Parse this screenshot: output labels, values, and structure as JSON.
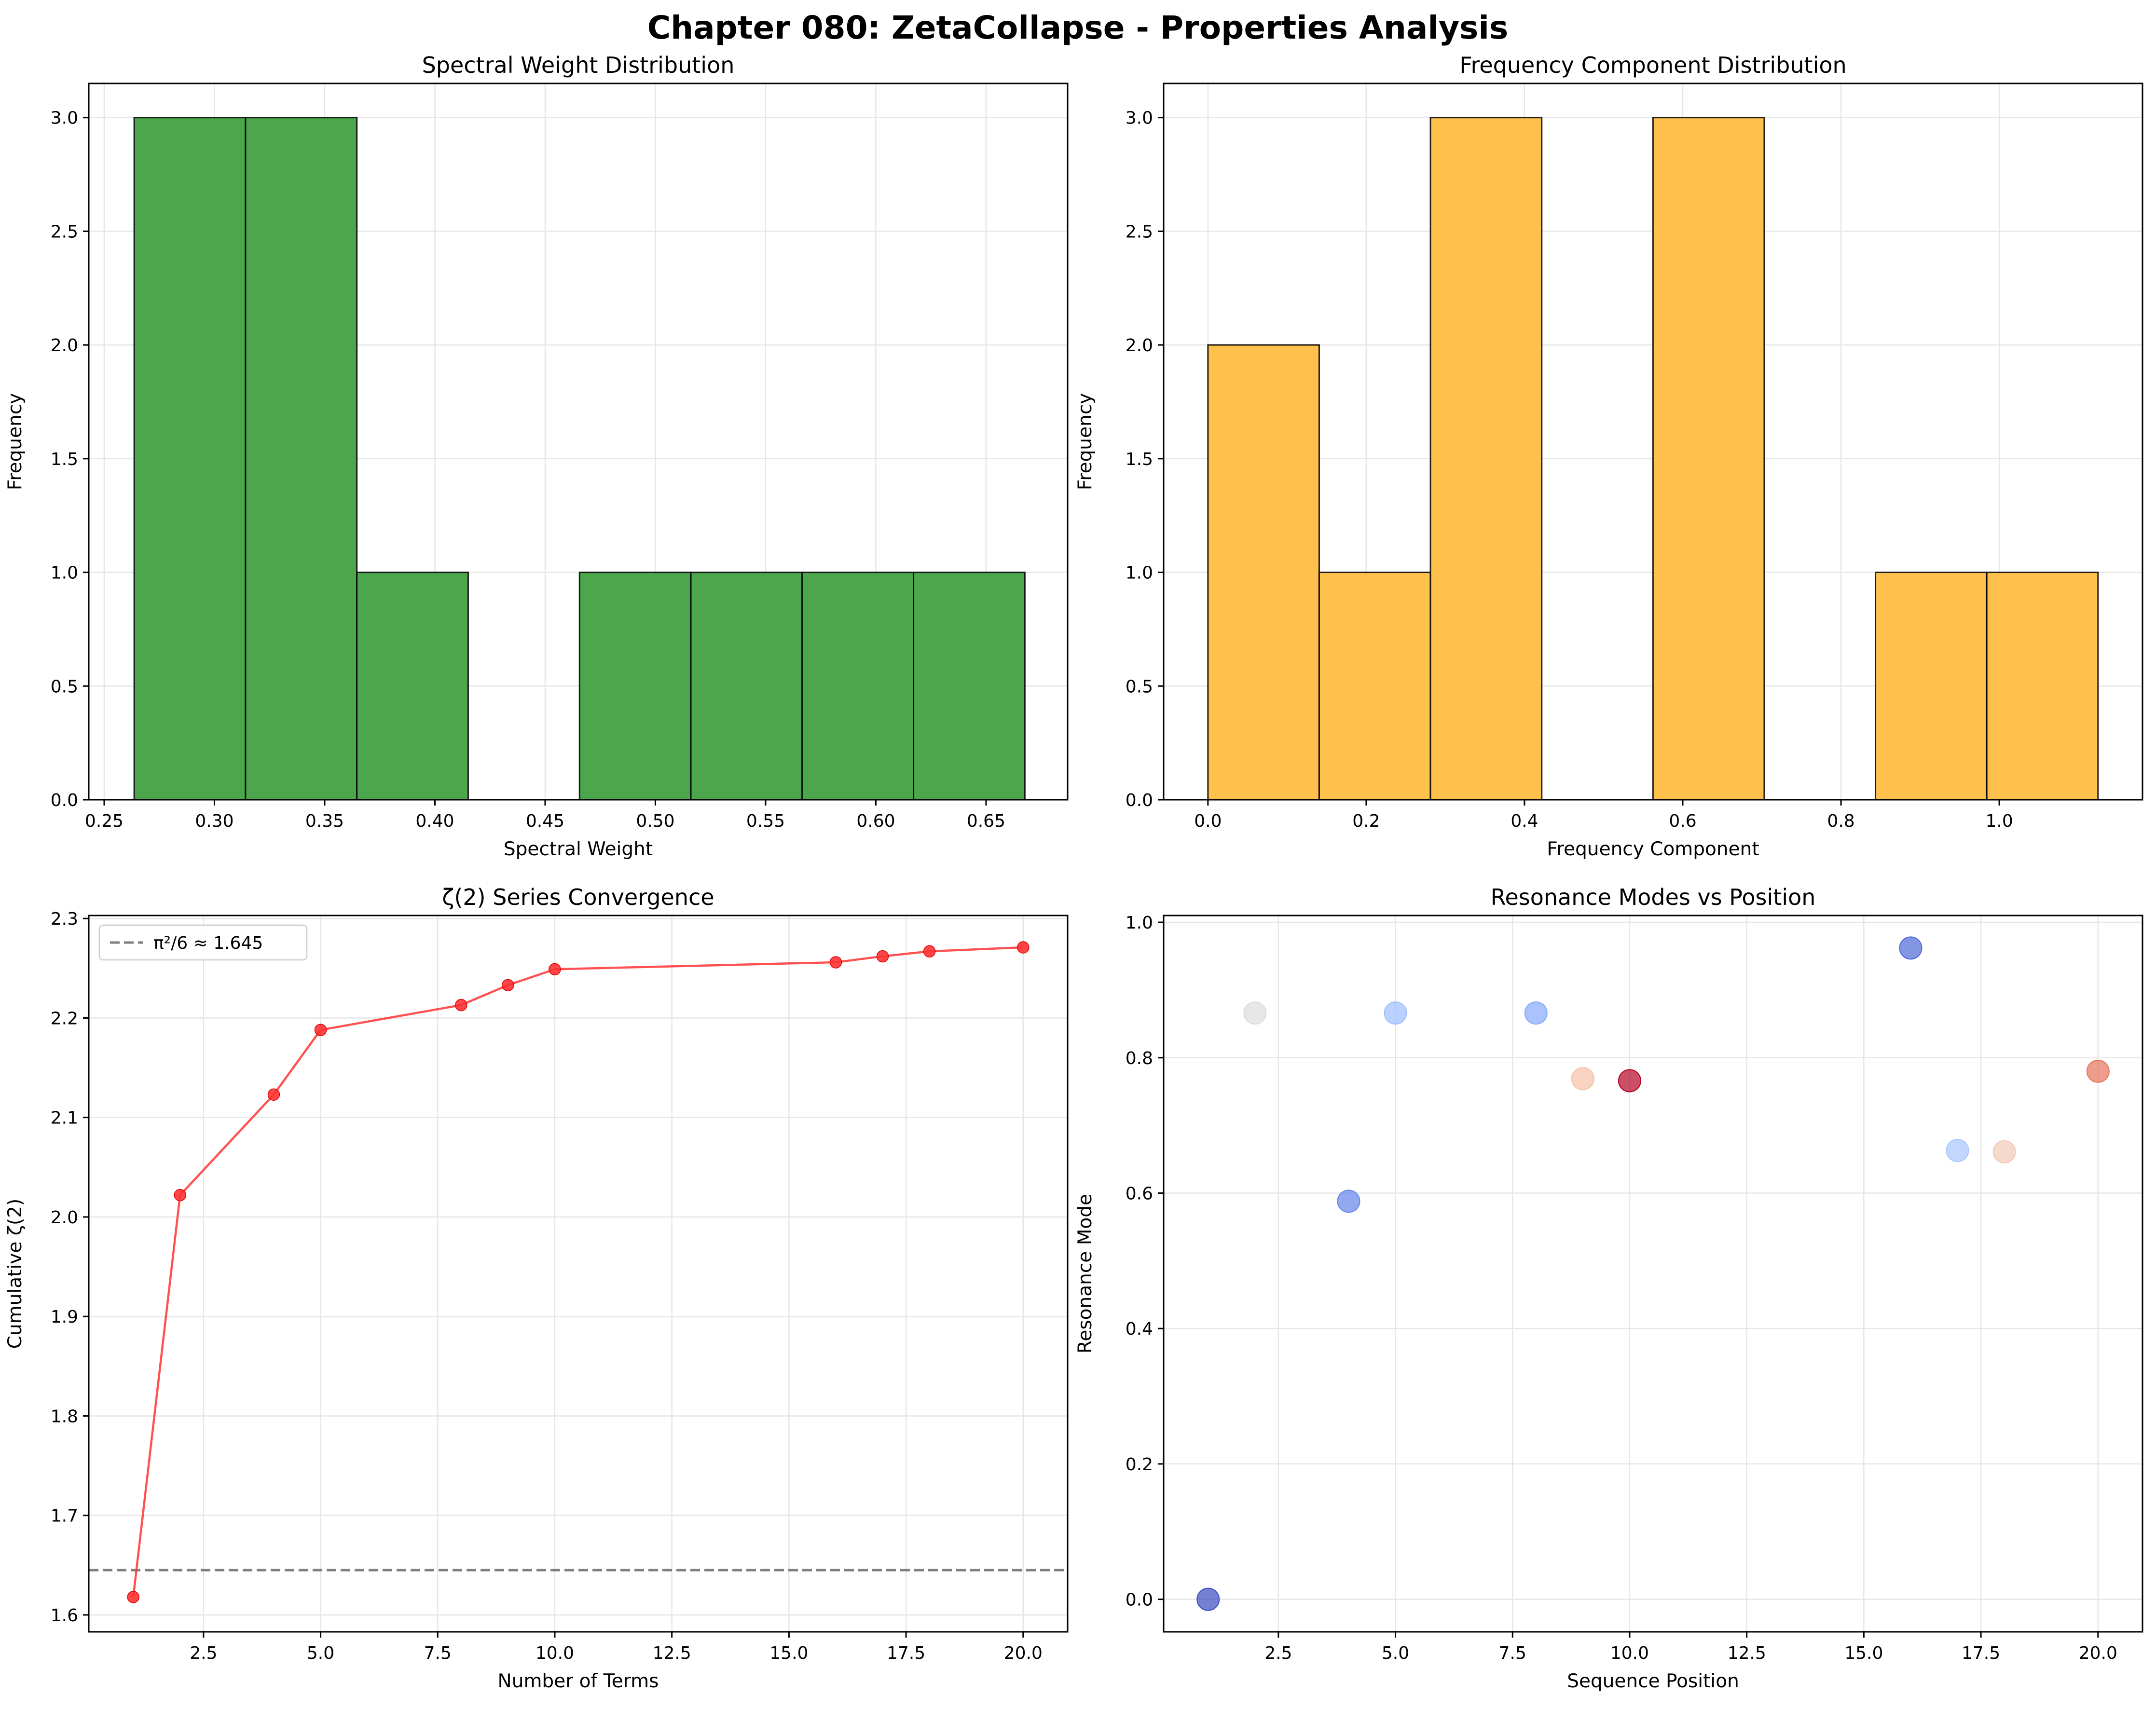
{
  "title": "Chapter 080: ZetaCollapse - Properties Analysis",
  "colors": {
    "hist_green": "#4ca64c",
    "hist_orange": "#ffc04c",
    "line_red": "#ff3333",
    "reference_gray": "#7f7f7f",
    "grid": "#e6e6e6"
  },
  "chart_data": [
    {
      "id": "spectral",
      "type": "bar",
      "title": "Spectral Weight Distribution",
      "xlabel": "Spectral Weight",
      "ylabel": "Frequency",
      "xlim": [
        0.243,
        0.687
      ],
      "ylim": [
        0,
        3.15
      ],
      "xticks": [
        0.25,
        0.3,
        0.35,
        0.4,
        0.45,
        0.5,
        0.55,
        0.6,
        0.65
      ],
      "xtick_labels": [
        "0.25",
        "0.30",
        "0.35",
        "0.40",
        "0.45",
        "0.50",
        "0.55",
        "0.60",
        "0.65"
      ],
      "yticks": [
        0,
        0.5,
        1.0,
        1.5,
        2.0,
        2.5,
        3.0
      ],
      "ytick_labels": [
        "0.0",
        "0.5",
        "1.0",
        "1.5",
        "2.0",
        "2.5",
        "3.0"
      ],
      "bin_edges": [
        0.2636,
        0.3141,
        0.3646,
        0.4151,
        0.4656,
        0.5161,
        0.5666,
        0.6171,
        0.6676
      ],
      "counts": [
        3,
        3,
        1,
        0,
        1,
        1,
        1,
        1
      ],
      "color": "#4ca64c",
      "grid": true
    },
    {
      "id": "frequency",
      "type": "bar",
      "title": "Frequency Component Distribution",
      "xlabel": "Frequency Component",
      "ylabel": "Frequency",
      "xlim": [
        -0.056,
        1.181
      ],
      "ylim": [
        0,
        3.15
      ],
      "xticks": [
        0.0,
        0.2,
        0.4,
        0.6,
        0.8,
        1.0
      ],
      "xtick_labels": [
        "0.0",
        "0.2",
        "0.4",
        "0.6",
        "0.8",
        "1.0"
      ],
      "yticks": [
        0,
        0.5,
        1.0,
        1.5,
        2.0,
        2.5,
        3.0
      ],
      "ytick_labels": [
        "0.0",
        "0.5",
        "1.0",
        "1.5",
        "2.0",
        "2.5",
        "3.0"
      ],
      "bin_edges": [
        0.0,
        0.1406,
        0.2812,
        0.4218,
        0.5624,
        0.703,
        0.8436,
        0.9842,
        1.1248
      ],
      "counts": [
        2,
        1,
        3,
        0,
        3,
        0,
        1,
        1
      ],
      "color": "#ffc04c",
      "grid": true
    },
    {
      "id": "convergence",
      "type": "line",
      "title": "ζ(2) Series Convergence",
      "xlabel": "Number of Terms",
      "ylabel": "Cumulative ζ(2)",
      "xlim": [
        0.05,
        20.95
      ],
      "ylim": [
        1.583,
        2.303
      ],
      "xticks": [
        2.5,
        5.0,
        7.5,
        10.0,
        12.5,
        15.0,
        17.5,
        20.0
      ],
      "xtick_labels": [
        "2.5",
        "5.0",
        "7.5",
        "10.0",
        "12.5",
        "15.0",
        "17.5",
        "20.0"
      ],
      "yticks": [
        1.6,
        1.7,
        1.8,
        1.9,
        2.0,
        2.1,
        2.2,
        2.3
      ],
      "ytick_labels": [
        "1.6",
        "1.7",
        "1.8",
        "1.9",
        "2.0",
        "2.1",
        "2.2",
        "2.3"
      ],
      "x": [
        1,
        2,
        4,
        5,
        8,
        9,
        10,
        16,
        17,
        18,
        20
      ],
      "y": [
        1.618,
        2.022,
        2.123,
        2.188,
        2.213,
        2.233,
        2.249,
        2.256,
        2.262,
        2.267,
        2.271
      ],
      "reference": {
        "y": 1.645,
        "label": "π²/6 ≈ 1.645"
      },
      "legend": "top-left",
      "grid": true
    },
    {
      "id": "resonance",
      "type": "scatter",
      "title": "Resonance Modes vs Position",
      "xlabel": "Sequence Position",
      "ylabel": "Resonance Mode",
      "xlim": [
        0.05,
        20.95
      ],
      "ylim": [
        -0.048,
        1.01
      ],
      "xticks": [
        2.5,
        5.0,
        7.5,
        10.0,
        12.5,
        15.0,
        17.5,
        20.0
      ],
      "xtick_labels": [
        "2.5",
        "5.0",
        "7.5",
        "10.0",
        "12.5",
        "15.0",
        "17.5",
        "20.0"
      ],
      "yticks": [
        0.0,
        0.2,
        0.4,
        0.6,
        0.8,
        1.0
      ],
      "ytick_labels": [
        "0.0",
        "0.2",
        "0.4",
        "0.6",
        "0.8",
        "1.0"
      ],
      "points": [
        {
          "x": 1,
          "y": 0.0,
          "color": "#3b4cc0"
        },
        {
          "x": 2,
          "y": 0.866,
          "color": "#dddddd"
        },
        {
          "x": 4,
          "y": 0.588,
          "color": "#6485ec"
        },
        {
          "x": 5,
          "y": 0.866,
          "color": "#9ebeff"
        },
        {
          "x": 8,
          "y": 0.866,
          "color": "#86a9fc"
        },
        {
          "x": 9,
          "y": 0.769,
          "color": "#f5c0a7"
        },
        {
          "x": 10,
          "y": 0.766,
          "color": "#b40426"
        },
        {
          "x": 16,
          "y": 0.962,
          "color": "#4f69d9"
        },
        {
          "x": 17,
          "y": 0.663,
          "color": "#a9c6fd"
        },
        {
          "x": 18,
          "y": 0.661,
          "color": "#f2c9b4"
        },
        {
          "x": 20,
          "y": 0.78,
          "color": "#e7745b"
        }
      ],
      "grid": true
    }
  ]
}
